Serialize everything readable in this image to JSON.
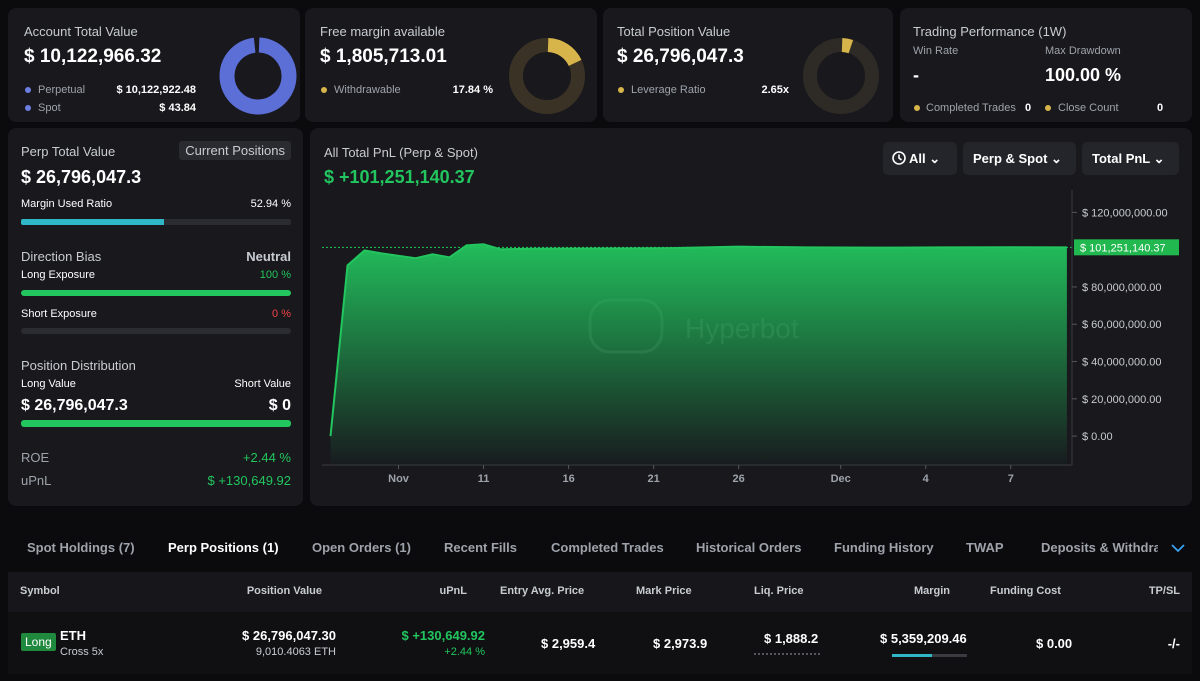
{
  "cards": [
    {
      "title": "Account Total Value",
      "value": "$ 10,122,966.32",
      "rows": [
        {
          "label": "Perpetual",
          "value": "$ 10,122,922.48"
        },
        {
          "label": "Spot",
          "value": "$ 43.84"
        }
      ]
    },
    {
      "title": "Free margin available",
      "value": "$ 1,805,713.01",
      "rows": [
        {
          "label": "Withdrawable",
          "value": "17.84 %"
        }
      ]
    },
    {
      "title": "Total Position Value",
      "value": "$ 26,796,047.3",
      "rows": [
        {
          "label": "Leverage Ratio",
          "value": "2.65x"
        }
      ]
    }
  ],
  "performance": {
    "title": "Trading Performance (1W)",
    "win_rate_label": "Win Rate",
    "win_rate": "-",
    "drawdown_label": "Max Drawdown",
    "drawdown": "100.00 %",
    "completed_label": "Completed Trades",
    "completed": "0",
    "close_label": "Close Count",
    "close": "0"
  },
  "perp": {
    "title": "Perp Total Value",
    "button": "Current Positions",
    "value": "$ 26,796,047.3",
    "margin": {
      "label": "Margin Used Ratio",
      "value": 52.94,
      "value_label": "52.94 %"
    },
    "bias_label": "Direction Bias",
    "bias": "Neutral",
    "long": {
      "label": "Long Exposure",
      "value": 100,
      "value_label": "100 %"
    },
    "short": {
      "label": "Short Exposure",
      "value": 0,
      "value_label": "0 %"
    },
    "dist_label": "Position Distribution",
    "long_value_label": "Long Value",
    "short_value_label": "Short Value",
    "long_value": "$ 26,796,047.3",
    "short_value": "$ 0",
    "roe_label": "ROE",
    "roe": "+2.44 %",
    "upnl_label": "uPnL",
    "upnl": "$ +130,649.92"
  },
  "pnl_chart": {
    "type": "area",
    "title": "All Total PnL (Perp & Spot)",
    "total": "$ +101,251,140.37",
    "controls": [
      "All",
      "Perp & Spot",
      "Total PnL"
    ],
    "watermark": "Hyperbot",
    "color": "#22c55e",
    "x": [
      0,
      1,
      2,
      3,
      5,
      6,
      7,
      8,
      9,
      10,
      12,
      16,
      20,
      24,
      28,
      32,
      36,
      40,
      43.3
    ],
    "values": [
      0,
      91600000,
      99600000,
      98000000,
      95400000,
      97500000,
      95900000,
      102300000,
      102900000,
      100200000,
      100500000,
      100600000,
      100800000,
      101600000,
      101200000,
      101100000,
      101200000,
      101300000,
      101251140.37
    ],
    "last_label": "$ 101,251,140.37",
    "xlim": [
      -0.5,
      43.6
    ],
    "xticks": [
      {
        "value": 4,
        "label": "Nov"
      },
      9,
      14,
      19,
      24,
      {
        "value": 30,
        "label": "Dec"
      },
      35,
      40
    ],
    "xtick_labels": [
      "Nov",
      "11",
      "16",
      "21",
      "26",
      "Dec",
      "4",
      "7"
    ],
    "ylim": [
      -15500000,
      132000000
    ],
    "yticks": [
      {
        "value": 0,
        "label": "$ 0.00"
      },
      {
        "value": 20000000,
        "label": "$ 20,000,000.00"
      },
      {
        "value": 40000000,
        "label": "$ 40,000,000.00"
      },
      {
        "value": 60000000,
        "label": "$ 60,000,000.00"
      },
      {
        "value": 80000000,
        "label": "$ 80,000,000.00"
      },
      {
        "value": 120000000,
        "label": "$ 120,000,000.00"
      }
    ]
  },
  "tabs": [
    "Spot Holdings (7)",
    "Perp Positions (1)",
    "Open Orders (1)",
    "Recent Fills",
    "Completed Trades",
    "Historical Orders",
    "Funding History",
    "TWAP",
    "Deposits & Withdraw"
  ],
  "table": {
    "columns": [
      "Symbol",
      "Position Value",
      "uPnL",
      "Entry Avg. Price",
      "Mark Price",
      "Liq. Price",
      "Margin",
      "Funding Cost",
      "TP/SL"
    ],
    "rows": [
      [
        {
          "badge": "Long",
          "main": "ETH",
          "sub": "Cross 5x"
        },
        {
          "main": "$ 26,796,047.30",
          "sub": "9,010.4063 ETH"
        },
        {
          "main": "$ +130,649.92",
          "sub": "+2.44 %"
        },
        "$ 2,959.4",
        "$ 2,973.9",
        "$ 1,888.2",
        "$ 5,359,209.46",
        "$ 0.00",
        "-/-"
      ]
    ]
  }
}
